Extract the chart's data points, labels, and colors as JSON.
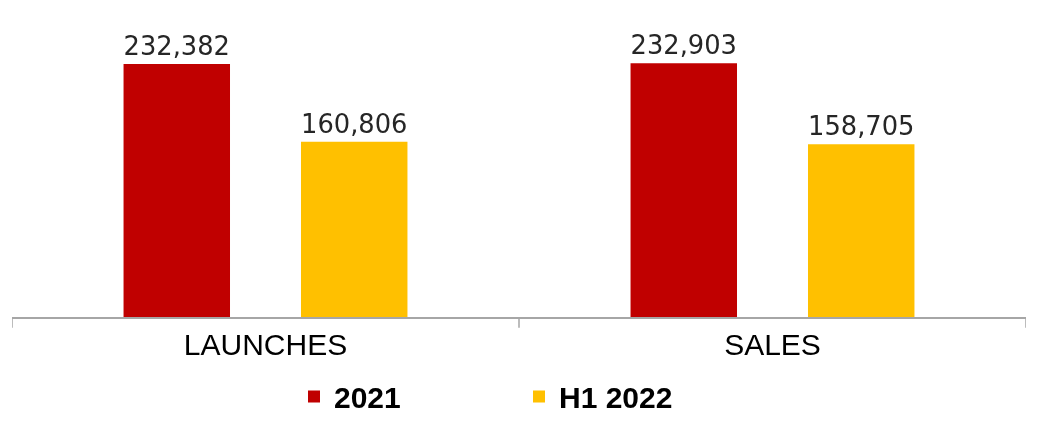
{
  "chart_data": {
    "type": "bar",
    "categories": [
      "LAUNCHES",
      "SALES"
    ],
    "series": [
      {
        "name": "2021",
        "color": "#c00000",
        "values": [
          232382,
          232903
        ],
        "value_labels": [
          "232,382",
          "232,903"
        ]
      },
      {
        "name": "H1 2022",
        "color": "#ffc000",
        "values": [
          160806,
          158705
        ],
        "value_labels": [
          "160,806",
          "158,705"
        ]
      }
    ],
    "legend": "bottom",
    "tick_labels": "x"
  }
}
